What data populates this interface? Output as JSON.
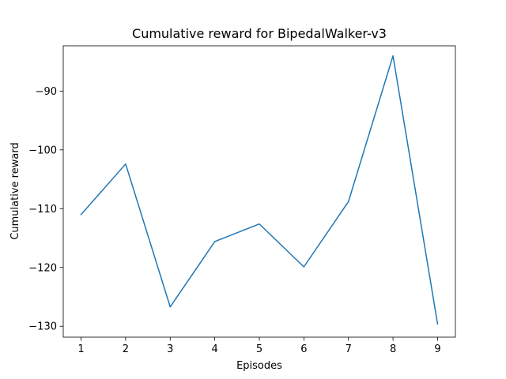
{
  "chart_data": {
    "type": "line",
    "title": "Cumulative reward for BipedalWalker-v3",
    "xlabel": "Episodes",
    "ylabel": "Cumulative reward",
    "x": [
      1,
      2,
      3,
      4,
      5,
      6,
      7,
      8,
      9
    ],
    "series": [
      {
        "values": [
          -111.0,
          -102.4,
          -126.7,
          -115.6,
          -112.6,
          -119.9,
          -108.8,
          -84.0,
          -129.6
        ],
        "color": "#1f77b4"
      }
    ],
    "xlim": [
      0.6,
      9.4
    ],
    "ylim": [
      -131.85,
      -82.3
    ],
    "xticks": [
      1,
      2,
      3,
      4,
      5,
      6,
      7,
      8,
      9
    ],
    "yticks": [
      -130,
      -120,
      -110,
      -100,
      -90
    ],
    "ytick_labels": [
      "−130",
      "−120",
      "−110",
      "−100",
      "−90"
    ],
    "grid": false,
    "legend": "none"
  }
}
